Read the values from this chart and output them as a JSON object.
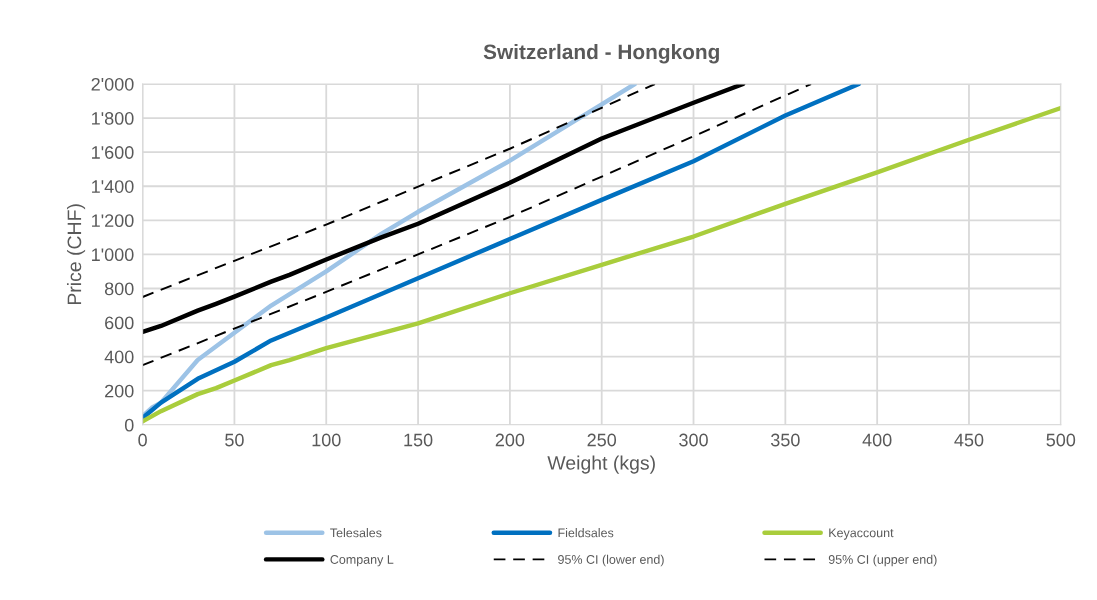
{
  "chart_data": {
    "type": "line",
    "title": "Switzerland - Hongkong",
    "xlabel": "Weight (kgs)",
    "ylabel": "Price (CHF)",
    "xlim": [
      0,
      500
    ],
    "xticks": [
      0,
      50,
      100,
      150,
      200,
      250,
      300,
      350,
      400,
      450,
      500
    ],
    "ylim": [
      0,
      2000
    ],
    "yticks": [
      0,
      200,
      400,
      600,
      800,
      {
        "value": 1000,
        "label": "1'000"
      },
      {
        "value": 1200,
        "label": "1'200"
      },
      {
        "value": 1400,
        "label": "1'400"
      },
      {
        "value": 1600,
        "label": "1'600"
      },
      {
        "value": 1800,
        "label": "1'800"
      },
      {
        "value": 2000,
        "label": "2'000"
      }
    ],
    "grid": true,
    "legend": "bottom",
    "marker": "none",
    "series": [
      {
        "name": "Telesales",
        "color": "#9dc3e6",
        "x": [
          0,
          5,
          10,
          30,
          50,
          70,
          100,
          130,
          150,
          200,
          250,
          268
        ],
        "values": [
          50,
          100,
          130,
          380,
          540,
          700,
          900,
          1120,
          1250,
          1550,
          1880,
          2000
        ]
      },
      {
        "name": "Fieldsales",
        "color": "#0070c0",
        "x": [
          0,
          10,
          30,
          50,
          70,
          100,
          150,
          200,
          250,
          300,
          350,
          390
        ],
        "values": [
          40,
          130,
          270,
          370,
          495,
          630,
          860,
          1090,
          1320,
          1547,
          1815,
          2000
        ]
      },
      {
        "name": "Keyaccount",
        "color": "#a9cd3c",
        "x": [
          0,
          10,
          30,
          40,
          50,
          70,
          80,
          100,
          150,
          200,
          250,
          300,
          350,
          400,
          450,
          500
        ],
        "values": [
          20,
          80,
          180,
          215,
          260,
          350,
          380,
          450,
          595,
          772,
          939,
          1105,
          1297,
          1481,
          1673,
          1859
        ]
      },
      {
        "name": "Company L",
        "color": "#000000",
        "x": [
          0,
          10,
          30,
          40,
          50,
          70,
          80,
          100,
          130,
          150,
          200,
          250,
          300,
          327
        ],
        "values": [
          545,
          580,
          670,
          710,
          752,
          840,
          880,
          970,
          1100,
          1180,
          1420,
          1680,
          1890,
          2000
        ]
      },
      {
        "name": "95% CI (lower end)",
        "color": "#000000",
        "line_style": "dashed",
        "x": [
          0,
          100,
          200,
          300,
          364
        ],
        "values": [
          350,
          780,
          1220,
          1693,
          2000
        ]
      },
      {
        "name": "95% CI (upper end)",
        "color": "#000000",
        "line_style": "dashed",
        "x": [
          0,
          100,
          200,
          279
        ],
        "values": [
          750,
          1175,
          1620,
          2000
        ]
      }
    ]
  }
}
